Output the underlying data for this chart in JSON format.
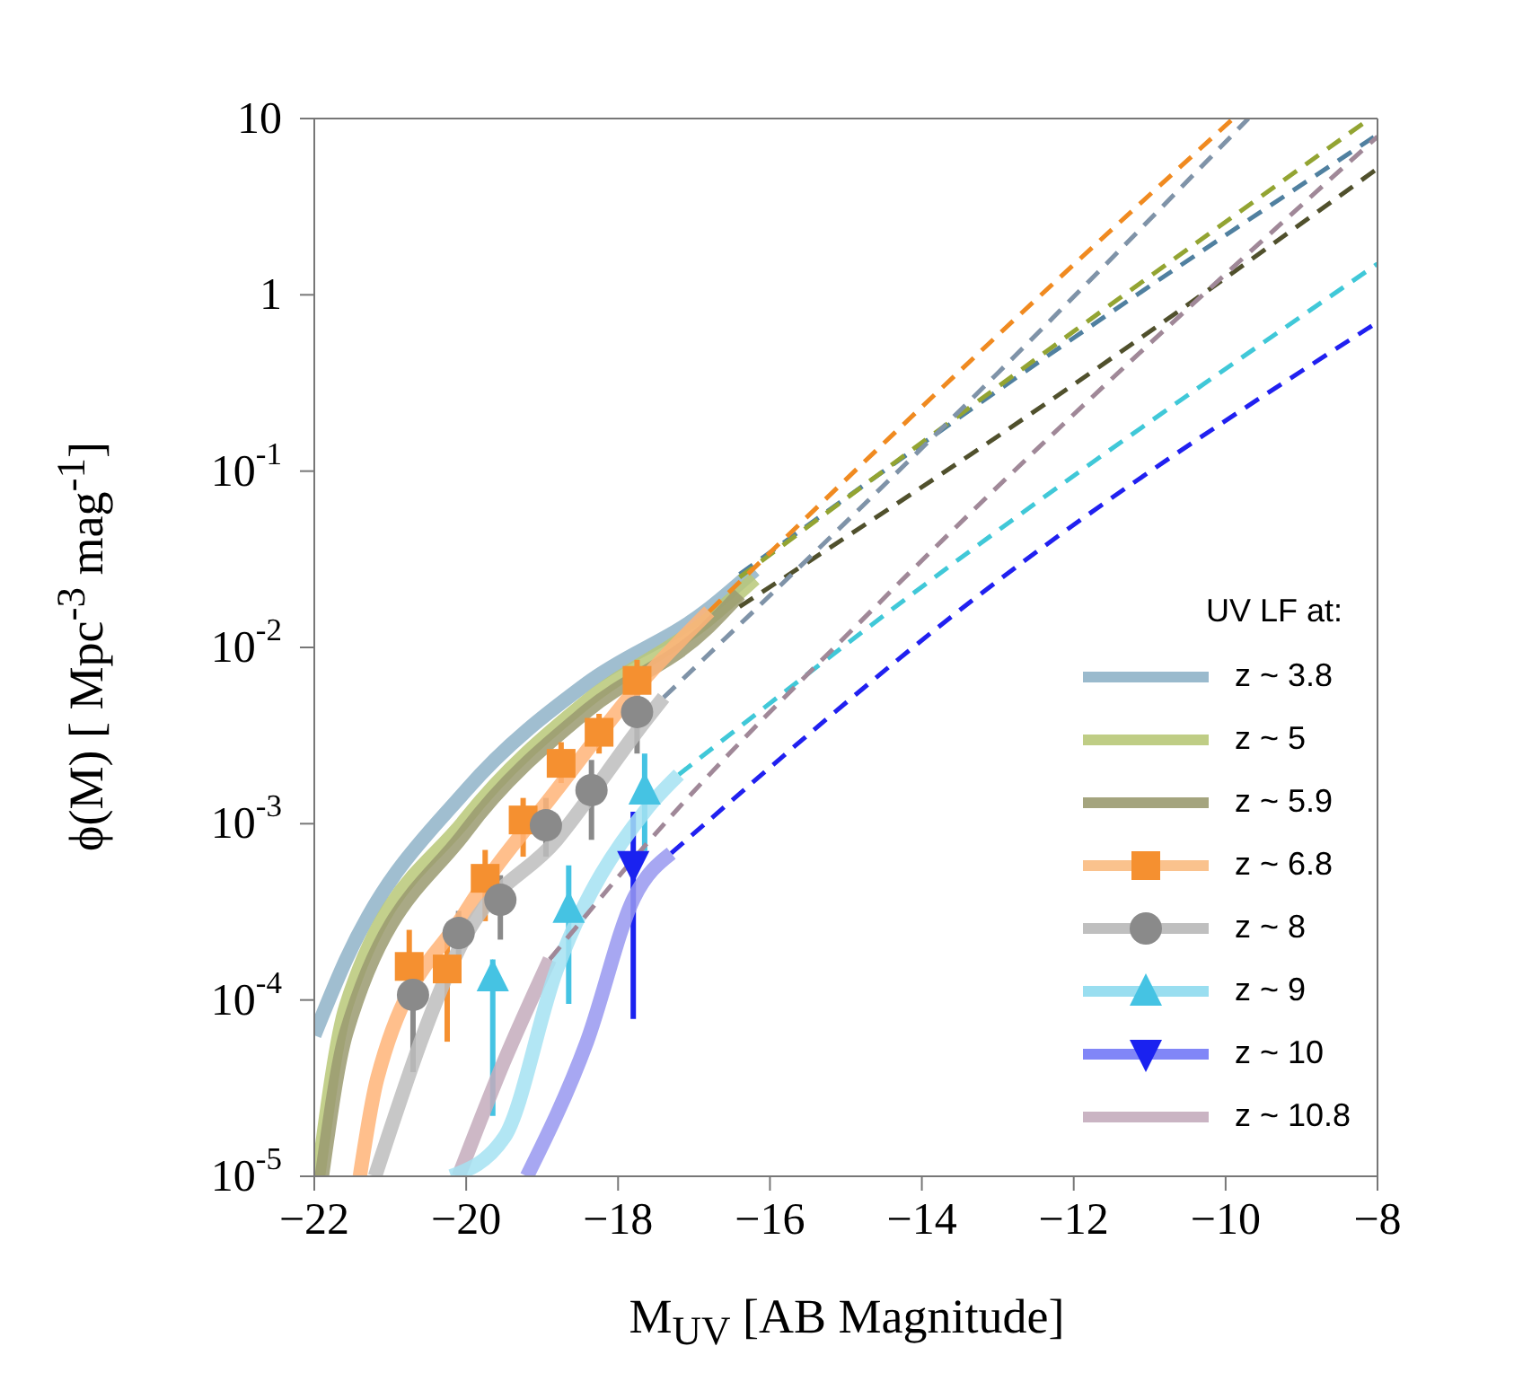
{
  "chart_data": {
    "type": "line",
    "xlabel": "M$_{UV}$ [AB Magnitude]",
    "ylabel": "ϕ(M) [ Mpc$^{-3}$ mag$^{-1}$]",
    "legend_title": "UV LF at:",
    "legend": "bottom right",
    "log": "y",
    "grid": false,
    "xlim": [
      -22,
      -8
    ],
    "xticks": [
      {
        "value": -22,
        "label": "−22"
      },
      {
        "value": -20,
        "label": "−20"
      },
      {
        "value": -18,
        "label": "−18"
      },
      {
        "value": -16,
        "label": "−16"
      },
      {
        "value": -14,
        "label": "−14"
      },
      {
        "value": -12,
        "label": "−12"
      },
      {
        "value": -10,
        "label": "−10"
      },
      {
        "value": -8,
        "label": "−8"
      }
    ],
    "ylim": [
      1e-05,
      10
    ],
    "yticks": [
      {
        "value": 1e-05,
        "label": "10$^{-5}$"
      },
      {
        "value": 0.0001,
        "label": "10$^{-4}$"
      },
      {
        "value": 0.001,
        "label": "10$^{-3}$"
      },
      {
        "value": 0.01,
        "label": "10$^{-2}$"
      },
      {
        "value": 0.1,
        "label": "10$^{-1}$"
      },
      1,
      10
    ],
    "series": [
      {
        "name": "z ~ 3.8",
        "type": "line",
        "line_style": "solid",
        "color": "#8fb3c8",
        "x": [
          -22,
          -21.58,
          -20,
          -18.4,
          -16.85,
          -16.2
        ],
        "values": [
          6.3e-05,
          0.00017,
          0.00155,
          0.0063,
          0.016,
          0.0275
        ]
      },
      {
        "name": "z ~ 5",
        "type": "line",
        "line_style": "solid",
        "color": "#b8c878",
        "x": [
          -21.95,
          -21.58,
          -20,
          -18.4,
          -16.85,
          -16.2
        ],
        "values": [
          1e-05,
          9.3e-05,
          0.00107,
          0.005,
          0.014,
          0.0245
        ]
      },
      {
        "name": "z ~ 5.9",
        "type": "line",
        "line_style": "solid",
        "color": "#9a9a70",
        "x": [
          -21.9,
          -21.58,
          -20,
          -18.4,
          -16.85,
          -16.4
        ],
        "values": [
          1e-05,
          6.5e-05,
          0.00091,
          0.0044,
          0.0126,
          0.02
        ]
      },
      {
        "name": "z ~ 6.8",
        "type": "scatter",
        "marker": "square",
        "color": "#f59030",
        "x": [
          -20.75,
          -20.25,
          -19.75,
          -19.25,
          -18.75,
          -18.25,
          -17.75
        ],
        "values": [
          0.000155,
          0.00015,
          0.00049,
          0.00105,
          0.0022,
          0.0033,
          0.0065
        ],
        "errors": [
          [
            9e-05,
            0.00025
          ],
          [
            5.8e-05,
            0.00023
          ],
          [
            0.00028,
            0.00071
          ],
          [
            0.00065,
            0.0014
          ],
          [
            0.0017,
            0.0029
          ],
          [
            0.0025,
            0.0042
          ],
          [
            0.0049,
            0.0085
          ]
        ]
      },
      {
        "name": "z ~ 8",
        "type": "scatter",
        "marker": "circle",
        "color": "#8a8a8a",
        "x": [
          -20.7,
          -20.1,
          -19.55,
          -18.95,
          -18.35,
          -17.75
        ],
        "values": [
          0.000107,
          0.00024,
          0.00037,
          0.00098,
          0.00155,
          0.0043
        ],
        "errors": [
          [
            3.9e-05,
            0.000107
          ],
          [
            0.00015,
            0.00032
          ],
          [
            0.00022,
            0.00051
          ],
          [
            0.00065,
            0.0014
          ],
          [
            0.00081,
            0.0023
          ],
          [
            0.0025,
            0.0058
          ]
        ]
      },
      {
        "name": "z ~ 9",
        "type": "scatter",
        "marker": "triangle",
        "color": "#45c3e3",
        "x": [
          -19.65,
          -18.65,
          -17.65
        ],
        "values": [
          0.000135,
          0.00033,
          0.00155
        ],
        "errors": [
          [
            2.2e-05,
            0.00017
          ],
          [
            9.5e-05,
            0.00058
          ],
          [
            0.0007,
            0.0025
          ]
        ]
      },
      {
        "name": "z ~ 10",
        "type": "scatter",
        "marker": "triangle-down",
        "color": "#1a22f0",
        "x": [
          -17.8
        ],
        "values": [
          0.00058
        ],
        "errors": [
          [
            7.8e-05,
            0.00117
          ]
        ]
      },
      {
        "name": "z ~ 10.8",
        "type": "line",
        "line_style": "solid",
        "color": "#c4acbc",
        "x": [
          -20.1,
          -19.5,
          -18.9
        ],
        "values": [
          1e-05,
          4.5e-05,
          0.00017
        ]
      },
      {
        "type": "line",
        "line_style": "solid",
        "color": "#ffb478",
        "x": [
          -21.4,
          -21.17,
          -20,
          -18.81,
          -17.63,
          -16.8
        ],
        "values": [
          1e-05,
          3.6e-05,
          0.00032,
          0.00155,
          0.0068,
          0.016
        ]
      },
      {
        "type": "line",
        "line_style": "solid",
        "color": "#bdbdbd",
        "x": [
          -21.2,
          -20,
          -18.81,
          -17.63,
          -17.4
        ],
        "values": [
          1e-05,
          0.000234,
          0.00081,
          0.0039,
          0.0052
        ]
      },
      {
        "type": "line",
        "line_style": "solid",
        "color": "#a4e2f2",
        "x": [
          -20.2,
          -19.5,
          -18.81,
          -17.63,
          -17.2
        ],
        "values": [
          1e-05,
          1.66e-05,
          0.000148,
          0.0012,
          0.0019
        ]
      },
      {
        "type": "line",
        "line_style": "solid",
        "color": "#9898f0",
        "x": [
          -19.2,
          -18.41,
          -17.79,
          -17.3
        ],
        "values": [
          1e-05,
          5.8e-05,
          0.00038,
          0.00068
        ]
      },
      {
        "type": "line",
        "line_style": "dashed",
        "color": "#5080a0",
        "x": [
          -16.4,
          -12,
          -8
        ],
        "values": [
          0.026,
          0.57,
          8.1
        ]
      },
      {
        "type": "line",
        "line_style": "dashed",
        "color": "#93a432",
        "x": [
          -16.4,
          -12,
          -8.1
        ],
        "values": [
          0.025,
          0.62,
          10
        ]
      },
      {
        "type": "line",
        "line_style": "dashed",
        "color": "#50502c",
        "x": [
          -16.4,
          -12,
          -8
        ],
        "values": [
          0.017,
          0.31,
          5.2
        ]
      },
      {
        "type": "line",
        "line_style": "dashed",
        "color": "#f08a20",
        "x": [
          -16.8,
          -13,
          -9.9
        ],
        "values": [
          0.016,
          0.59,
          10
        ]
      },
      {
        "type": "line",
        "line_style": "dashed",
        "color": "#7f93a8",
        "x": [
          -17.4,
          -13,
          -9.7
        ],
        "values": [
          0.0052,
          0.36,
          10
        ]
      },
      {
        "line_style": "dashed",
        "color": "#40c8d8",
        "x": [
          -17.2,
          -14.2,
          -8
        ],
        "values": [
          0.0019,
          0.019,
          1.5
        ]
      },
      {
        "type": "line",
        "line_style": "dashed",
        "color": "#2020f0",
        "x": [
          -17.3,
          -13.3,
          -8
        ],
        "values": [
          0.00068,
          0.019,
          0.7
        ]
      },
      {
        "type": "line",
        "line_style": "dashed",
        "color": "#a08898",
        "x": [
          -18.9,
          -17.6,
          -14.5,
          -8
        ],
        "values": [
          0.00017,
          0.00079,
          0.019,
          7.9
        ]
      }
    ]
  }
}
